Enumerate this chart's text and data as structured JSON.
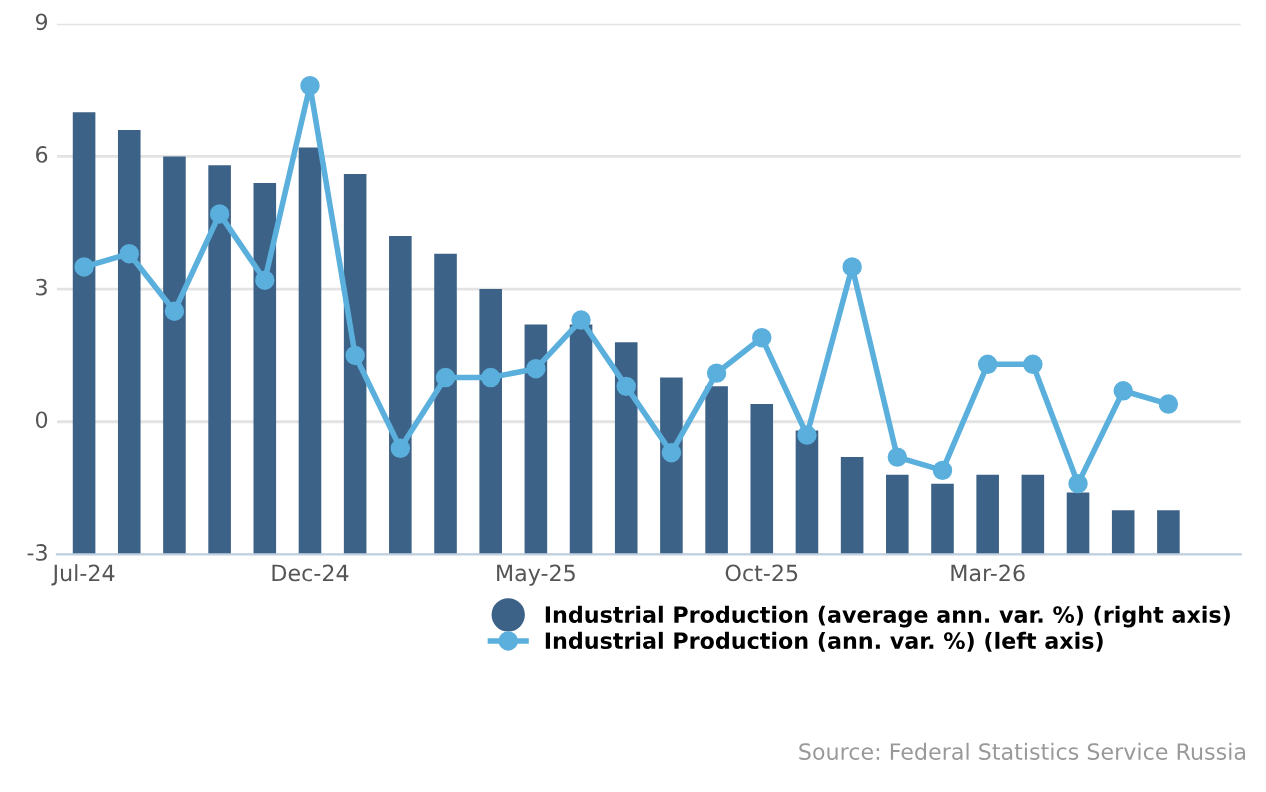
{
  "chart_data": {
    "type": "bar",
    "categories": [
      "Jul-24",
      null,
      null,
      null,
      null,
      "Dec-24",
      null,
      null,
      null,
      null,
      "May-25",
      null,
      null,
      null,
      null,
      "Oct-25",
      null,
      null,
      null,
      null,
      "Mar-26",
      null,
      null,
      null,
      null
    ],
    "series": [
      {
        "name": "Industrial Production (average ann. var. %) (right axis)",
        "color": "#3d6287",
        "base": [
          -3,
          -3,
          -3,
          -3,
          -3,
          -3,
          -3,
          -3,
          -3,
          -3,
          -3,
          -3,
          -3,
          -3,
          -3,
          -3,
          -3,
          -3,
          -3,
          -3,
          -3,
          -3,
          -3,
          -3,
          -3
        ],
        "values": [
          10.0,
          9.6,
          9.0,
          8.8,
          8.4,
          9.2,
          8.6,
          7.2,
          6.8,
          6.0,
          5.2,
          5.2,
          4.8,
          4.0,
          3.8,
          3.4,
          2.8,
          2.2,
          1.8,
          1.6,
          1.8,
          1.8,
          1.4,
          1.0,
          1.0
        ]
      },
      {
        "name": "Industrial Production (ann. var. %) (left axis)",
        "type": "line",
        "color": "#5aafdc",
        "marker": "circle",
        "values": [
          3.5,
          3.8,
          2.5,
          4.7,
          3.2,
          7.6,
          1.5,
          -0.6,
          1.0,
          1.0,
          1.2,
          2.3,
          0.8,
          -0.7,
          1.1,
          1.9,
          -0.3,
          3.5,
          -0.8,
          -1.1,
          1.3,
          1.3,
          -1.4,
          0.7,
          0.4
        ]
      }
    ],
    "ylim": [
      -3,
      9
    ],
    "yticks": [
      {
        "value": -3,
        "label": "-3"
      },
      0,
      3,
      6,
      9
    ],
    "grid": "y",
    "legend": "bottom right",
    "annotations": [
      "Source: Federal Statistics Service Russia"
    ]
  }
}
